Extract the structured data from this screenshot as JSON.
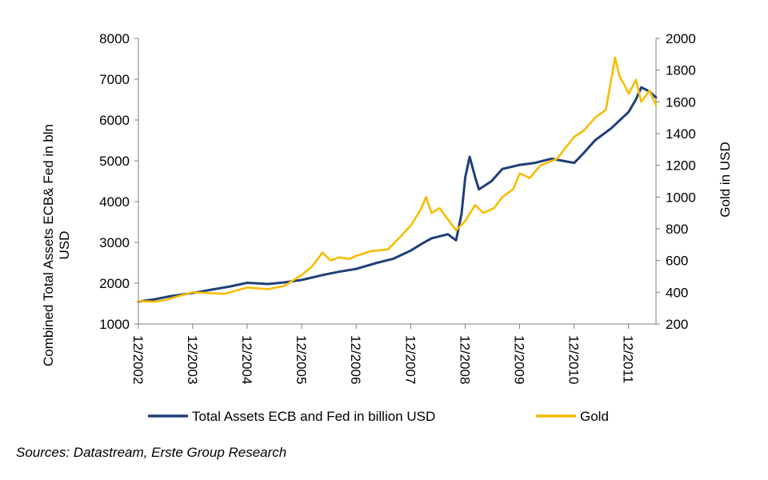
{
  "chart_data": {
    "type": "line",
    "title": "",
    "xlabel": "",
    "ylabel_left": [
      "Combined Total Assets ECB& Fed in bln",
      "USD"
    ],
    "ylabel_right": "Gold in USD",
    "x_tick_labels": [
      "12/2002",
      "12/2003",
      "12/2004",
      "12/2005",
      "12/2006",
      "12/2007",
      "12/2008",
      "12/2009",
      "12/2010",
      "12/2011"
    ],
    "x_range": [
      2002.92,
      2012.42
    ],
    "ylim_left": [
      1000,
      8000
    ],
    "ylim_right": [
      200,
      2000
    ],
    "yticks_left": [
      1000,
      2000,
      3000,
      4000,
      5000,
      6000,
      7000,
      8000
    ],
    "yticks_right": [
      200,
      400,
      600,
      800,
      1000,
      1200,
      1400,
      1600,
      1800,
      2000
    ],
    "grid": false,
    "legend_position": "bottom",
    "series": [
      {
        "name": "Total Assets ECB and Fed in billion USD",
        "axis": "left",
        "color": "#1F3F7A",
        "points": [
          [
            2002.92,
            1550
          ],
          [
            2003.2,
            1600
          ],
          [
            2003.5,
            1680
          ],
          [
            2003.92,
            1760
          ],
          [
            2004.3,
            1850
          ],
          [
            2004.6,
            1920
          ],
          [
            2004.92,
            2010
          ],
          [
            2005.3,
            1980
          ],
          [
            2005.6,
            2020
          ],
          [
            2005.92,
            2080
          ],
          [
            2006.3,
            2200
          ],
          [
            2006.6,
            2280
          ],
          [
            2006.92,
            2350
          ],
          [
            2007.3,
            2500
          ],
          [
            2007.6,
            2600
          ],
          [
            2007.92,
            2800
          ],
          [
            2008.1,
            2950
          ],
          [
            2008.3,
            3100
          ],
          [
            2008.6,
            3200
          ],
          [
            2008.75,
            3050
          ],
          [
            2008.85,
            3700
          ],
          [
            2008.92,
            4600
          ],
          [
            2009.0,
            5100
          ],
          [
            2009.1,
            4600
          ],
          [
            2009.17,
            4300
          ],
          [
            2009.4,
            4500
          ],
          [
            2009.6,
            4800
          ],
          [
            2009.92,
            4900
          ],
          [
            2010.2,
            4950
          ],
          [
            2010.5,
            5050
          ],
          [
            2010.92,
            4950
          ],
          [
            2011.1,
            5200
          ],
          [
            2011.3,
            5500
          ],
          [
            2011.6,
            5800
          ],
          [
            2011.92,
            6200
          ],
          [
            2012.05,
            6500
          ],
          [
            2012.15,
            6800
          ],
          [
            2012.3,
            6700
          ],
          [
            2012.42,
            6550
          ]
        ]
      },
      {
        "name": "Gold",
        "axis": "right",
        "color": "#F7BD00",
        "points": [
          [
            2002.92,
            345
          ],
          [
            2003.2,
            340
          ],
          [
            2003.4,
            350
          ],
          [
            2003.6,
            370
          ],
          [
            2003.92,
            400
          ],
          [
            2004.2,
            395
          ],
          [
            2004.5,
            390
          ],
          [
            2004.92,
            430
          ],
          [
            2005.3,
            420
          ],
          [
            2005.6,
            440
          ],
          [
            2005.92,
            510
          ],
          [
            2006.1,
            560
          ],
          [
            2006.3,
            650
          ],
          [
            2006.45,
            600
          ],
          [
            2006.6,
            620
          ],
          [
            2006.8,
            610
          ],
          [
            2006.92,
            630
          ],
          [
            2007.2,
            660
          ],
          [
            2007.5,
            670
          ],
          [
            2007.7,
            740
          ],
          [
            2007.92,
            820
          ],
          [
            2008.1,
            920
          ],
          [
            2008.2,
            1000
          ],
          [
            2008.3,
            900
          ],
          [
            2008.45,
            930
          ],
          [
            2008.6,
            860
          ],
          [
            2008.75,
            790
          ],
          [
            2008.92,
            850
          ],
          [
            2009.1,
            950
          ],
          [
            2009.25,
            900
          ],
          [
            2009.45,
            930
          ],
          [
            2009.6,
            1000
          ],
          [
            2009.8,
            1050
          ],
          [
            2009.92,
            1150
          ],
          [
            2010.1,
            1120
          ],
          [
            2010.3,
            1200
          ],
          [
            2010.6,
            1240
          ],
          [
            2010.92,
            1380
          ],
          [
            2011.1,
            1420
          ],
          [
            2011.3,
            1500
          ],
          [
            2011.5,
            1550
          ],
          [
            2011.67,
            1880
          ],
          [
            2011.75,
            1760
          ],
          [
            2011.85,
            1700
          ],
          [
            2011.92,
            1650
          ],
          [
            2012.05,
            1740
          ],
          [
            2012.15,
            1600
          ],
          [
            2012.3,
            1670
          ],
          [
            2012.42,
            1580
          ]
        ]
      }
    ],
    "colors": {
      "axis": "#7F7F7F",
      "tick_text": "#000000"
    }
  },
  "legend": {
    "items": [
      {
        "label": "Total Assets ECB and Fed in billion USD",
        "color": "#1F3F7A"
      },
      {
        "label": "Gold",
        "color": "#F7BD00"
      }
    ]
  },
  "source_note": "Sources: Datastream, Erste Group Research"
}
